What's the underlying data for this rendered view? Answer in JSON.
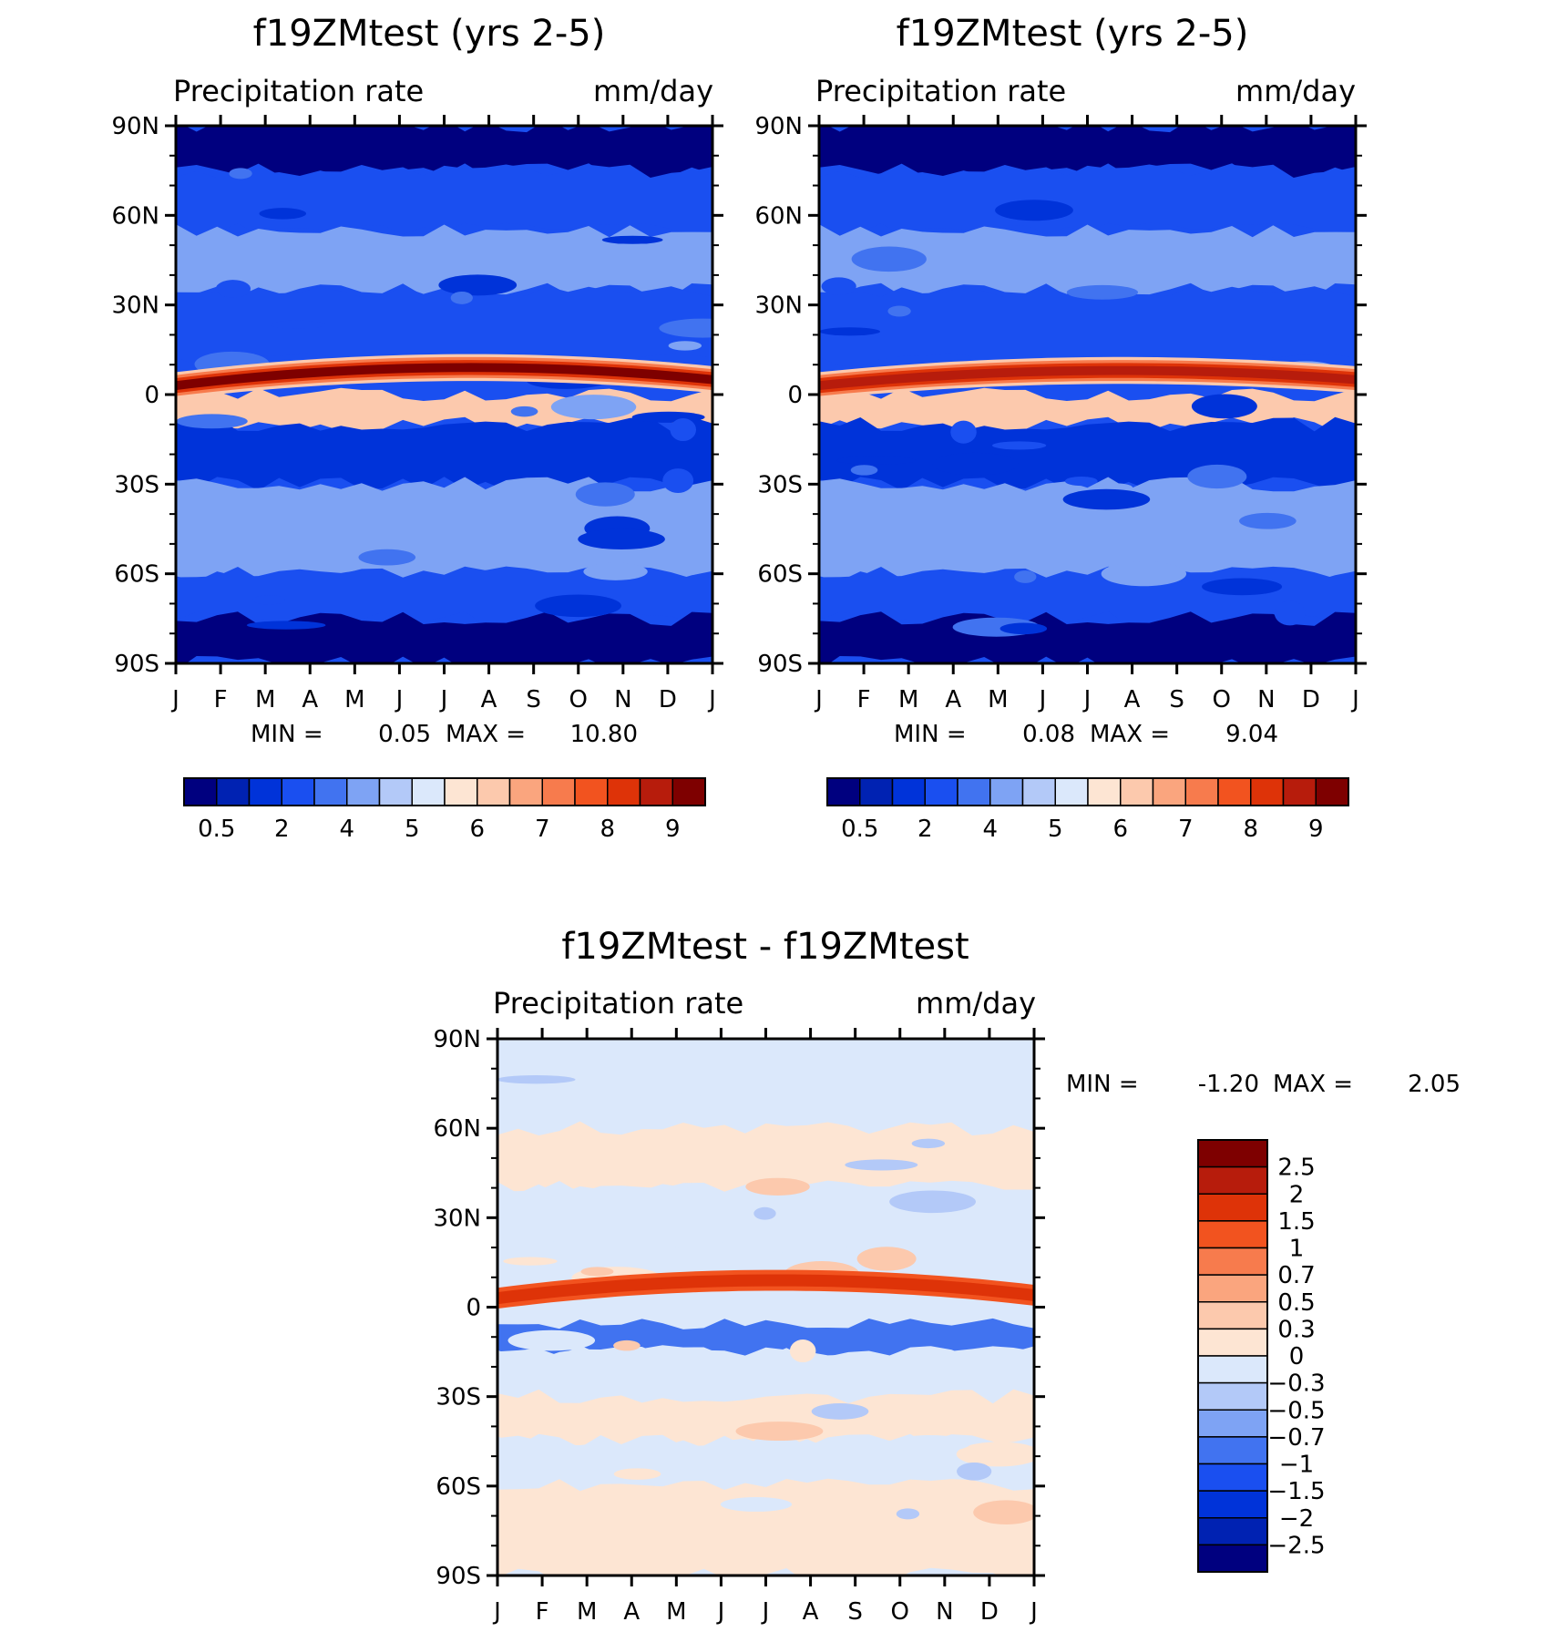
{
  "figure": {
    "colors": {
      "precip_palette": [
        "#00007f",
        "#0022b2",
        "#0033d9",
        "#1a4ff0",
        "#4173f0",
        "#7ea3f4",
        "#b3c9f8",
        "#dbe8fb",
        "#fde5d3",
        "#fcc9ad",
        "#faa57e",
        "#f77b4d",
        "#f2531f",
        "#de3308",
        "#b71c0c",
        "#7e0000"
      ],
      "diff_palette": [
        "#00007f",
        "#0022b2",
        "#0033d9",
        "#1a4ff0",
        "#4173f0",
        "#7ea3f4",
        "#b3c9f8",
        "#dbe8fb",
        "#fde5d3",
        "#fcc9ad",
        "#faa57e",
        "#f77b4d",
        "#f2531f",
        "#de3308",
        "#b71c0c",
        "#7e0000"
      ]
    }
  },
  "chart_data": [
    {
      "type": "heatmap",
      "title": "f19ZMtest (yrs 2-5)",
      "subtitle_left": "Precipitation rate",
      "subtitle_right": "mm/day",
      "x_ticks": [
        "J",
        "F",
        "M",
        "A",
        "M",
        "J",
        "J",
        "A",
        "S",
        "O",
        "N",
        "D",
        "J"
      ],
      "y_ticks": [
        "90N",
        "60N",
        "30N",
        "0",
        "30S",
        "60S",
        "90S"
      ],
      "ylim": [
        -90,
        90
      ],
      "stats": {
        "min_label": "MIN =",
        "min": "0.05",
        "max_label": "MAX =",
        "max": "10.80"
      },
      "colorbar_labels": [
        "0.5",
        "2",
        "4",
        "5",
        "6",
        "7",
        "8",
        "9"
      ],
      "colorbar_orientation": "horizontal",
      "itcz": {
        "lat_start": 3,
        "lat_mid": 9,
        "lat_end": 5,
        "peak_month": "Jul",
        "peak_value": 10.8
      },
      "zones": [
        {
          "lat": [
            75,
            90
          ],
          "value": 0.3
        },
        {
          "lat": [
            55,
            75
          ],
          "value": 2.0
        },
        {
          "lat": [
            35,
            55
          ],
          "value": 4.0
        },
        {
          "lat": [
            12,
            35
          ],
          "value": 2.0
        },
        {
          "lat": [
            -10,
            0
          ],
          "value": 6.0
        },
        {
          "lat": [
            -30,
            -10
          ],
          "value": 1.0
        },
        {
          "lat": [
            -60,
            -30
          ],
          "value": 4.0
        },
        {
          "lat": [
            -75,
            -60
          ],
          "value": 2.0
        },
        {
          "lat": [
            -90,
            -75
          ],
          "value": 0.3
        }
      ]
    },
    {
      "type": "heatmap",
      "title": "f19ZMtest (yrs 2-5)",
      "subtitle_left": "Precipitation rate",
      "subtitle_right": "mm/day",
      "x_ticks": [
        "J",
        "F",
        "M",
        "A",
        "M",
        "J",
        "J",
        "A",
        "S",
        "O",
        "N",
        "D",
        "J"
      ],
      "y_ticks": [
        "90N",
        "60N",
        "30N",
        "0",
        "30S",
        "60S",
        "90S"
      ],
      "ylim": [
        -90,
        90
      ],
      "stats": {
        "min_label": "MIN =",
        "min": "0.08",
        "max_label": "MAX =",
        "max": "9.04"
      },
      "colorbar_labels": [
        "0.5",
        "2",
        "4",
        "5",
        "6",
        "7",
        "8",
        "9"
      ],
      "colorbar_orientation": "horizontal",
      "itcz": {
        "lat_start": 3,
        "lat_mid": 8,
        "lat_end": 5,
        "peak_month": "Aug",
        "peak_value": 9.04
      },
      "zones": [
        {
          "lat": [
            75,
            90
          ],
          "value": 0.3
        },
        {
          "lat": [
            55,
            75
          ],
          "value": 2.0
        },
        {
          "lat": [
            35,
            55
          ],
          "value": 4.0
        },
        {
          "lat": [
            12,
            35
          ],
          "value": 2.0
        },
        {
          "lat": [
            -10,
            0
          ],
          "value": 6.0
        },
        {
          "lat": [
            -30,
            -10
          ],
          "value": 1.0
        },
        {
          "lat": [
            -60,
            -30
          ],
          "value": 4.0
        },
        {
          "lat": [
            -75,
            -60
          ],
          "value": 2.0
        },
        {
          "lat": [
            -90,
            -75
          ],
          "value": 0.3
        }
      ]
    },
    {
      "type": "heatmap",
      "title": "f19ZMtest - f19ZMtest",
      "subtitle_left": "Precipitation rate",
      "subtitle_right": "mm/day",
      "x_ticks": [
        "J",
        "F",
        "M",
        "A",
        "M",
        "J",
        "J",
        "A",
        "S",
        "O",
        "N",
        "D",
        "J"
      ],
      "y_ticks": [
        "90N",
        "60N",
        "30N",
        "0",
        "30S",
        "60S",
        "90S"
      ],
      "ylim": [
        -90,
        90
      ],
      "stats": {
        "min_label": "MIN =",
        "min": "-1.20",
        "max_label": "MAX =",
        "max": "2.05"
      },
      "colorbar_labels": [
        "2.5",
        "2",
        "1.5",
        "1",
        "0.7",
        "0.5",
        "0.3",
        "0",
        "-0.3",
        "-0.5",
        "-0.7",
        "-1",
        "-1.5",
        "-2",
        "-2.5"
      ],
      "colorbar_orientation": "vertical",
      "itcz": {
        "lat_start": 3,
        "lat_mid": 9,
        "lat_end": 4,
        "peak_month": "Jul",
        "peak_value": 2.05
      },
      "zones": [
        {
          "lat": [
            60,
            90
          ],
          "value": -0.1
        },
        {
          "lat": [
            40,
            60
          ],
          "value": 0.1
        },
        {
          "lat": [
            20,
            40
          ],
          "value": -0.1
        },
        {
          "lat": [
            -15,
            -5
          ],
          "value": -0.8
        },
        {
          "lat": [
            -30,
            -15
          ],
          "value": -0.1
        },
        {
          "lat": [
            -45,
            -30
          ],
          "value": 0.1
        },
        {
          "lat": [
            -60,
            -45
          ],
          "value": -0.1
        },
        {
          "lat": [
            -90,
            -60
          ],
          "value": 0.1
        }
      ]
    }
  ]
}
